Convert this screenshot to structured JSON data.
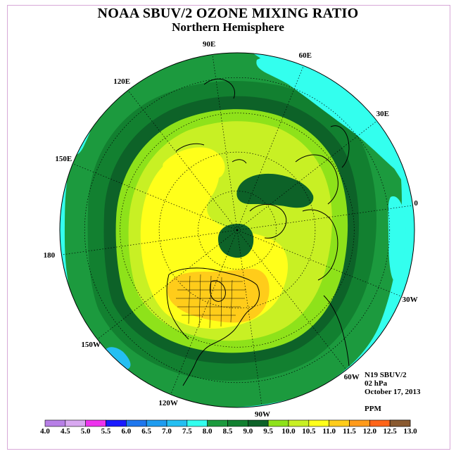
{
  "title": "NOAA SBUV/2 OZONE MIXING RATIO",
  "subtitle": "Northern Hemisphere",
  "info": {
    "satellite": "N19 SBUV/2",
    "level": "02 hPa",
    "date": "October 17, 2013",
    "units": "PPM"
  },
  "longitude_labels": [
    {
      "text": "90E",
      "lon": 90
    },
    {
      "text": "60E",
      "lon": 60
    },
    {
      "text": "30E",
      "lon": 30
    },
    {
      "text": "0",
      "lon": 0
    },
    {
      "text": "30W",
      "lon": -30
    },
    {
      "text": "60W",
      "lon": -60
    },
    {
      "text": "90W",
      "lon": -90
    },
    {
      "text": "120W",
      "lon": -120
    },
    {
      "text": "150W",
      "lon": -150
    },
    {
      "text": "180",
      "lon": 180
    },
    {
      "text": "150E",
      "lon": 150
    },
    {
      "text": "120E",
      "lon": 120
    }
  ],
  "colorbar": {
    "ticks": [
      "4.0",
      "4.5",
      "5.0",
      "5.5",
      "6.0",
      "6.5",
      "7.0",
      "7.5",
      "8.0",
      "8.5",
      "9.0",
      "9.5",
      "10.0",
      "10.5",
      "11.0",
      "11.5",
      "12.0",
      "12.5",
      "13.0"
    ],
    "colors": [
      "#b77fe6",
      "#d8a8f0",
      "#ee33ee",
      "#1a1aff",
      "#1e77ee",
      "#1e9cf0",
      "#24bff2",
      "#33ffee",
      "#1c9a3e",
      "#128030",
      "#0d6228",
      "#8ee21a",
      "#c8f024",
      "#ffff1a",
      "#ffcc1a",
      "#ff9a1a",
      "#ff6418",
      "#f01010",
      "#8a5a30"
    ]
  },
  "field": {
    "bands": [
      {
        "level": "7.5-8.0",
        "color": "#33ffee"
      },
      {
        "level": "8.0-8.5",
        "color": "#1c9a3e"
      },
      {
        "level": "8.5-9.0",
        "color": "#128030"
      },
      {
        "level": "9.0-9.5",
        "color": "#8ee21a"
      },
      {
        "level": "9.5-10.0",
        "color": "#c8f024"
      },
      {
        "level": "10.0-10.5",
        "color": "#ffff1a"
      },
      {
        "level": "10.5-11.0",
        "color": "#ffcc1a"
      }
    ]
  }
}
